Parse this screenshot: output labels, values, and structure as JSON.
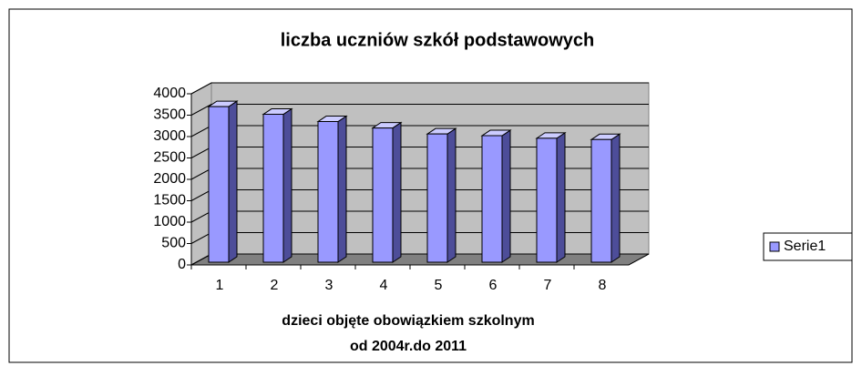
{
  "chart_data": {
    "type": "bar3d",
    "title": "liczba uczniów szkół podstawowych",
    "categories": [
      "1",
      "2",
      "3",
      "4",
      "5",
      "6",
      "7",
      "8"
    ],
    "series": [
      {
        "name": "Serie1",
        "color": "#9999ff",
        "values": [
          3700,
          3520,
          3350,
          3200,
          3060,
          3020,
          2960,
          2930
        ]
      }
    ],
    "xlabel": [
      "dzieci objęte obowiązkiem szkolnym",
      "od 2004r.do 2011"
    ],
    "ylim": [
      0,
      4000
    ],
    "yticks": [
      0,
      500,
      1000,
      1500,
      2000,
      2500,
      3000,
      3500,
      4000
    ],
    "grid": true,
    "legend": "right"
  }
}
